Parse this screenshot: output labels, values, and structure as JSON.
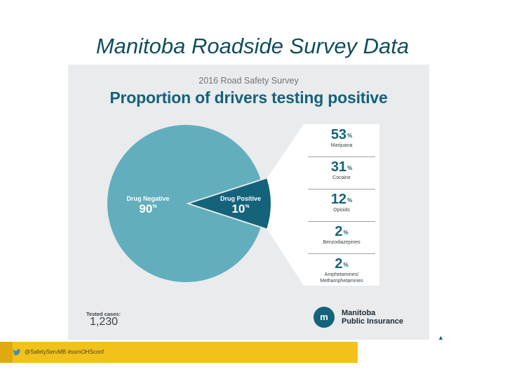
{
  "slide_title": "Manitoba Roadside Survey Data",
  "survey": {
    "subtitle": "2016 Road Safety Survey",
    "heading": "Proportion of drivers testing positive"
  },
  "chart_data": {
    "type": "pie",
    "slices": [
      {
        "label": "Drug Negative",
        "value": 90,
        "unit": "%",
        "color": "#62aebd"
      },
      {
        "label": "Drug Positive",
        "value": 10,
        "unit": "%",
        "color": "#14637a"
      }
    ],
    "breakdown": [
      {
        "label": "Marijuana",
        "value": 53
      },
      {
        "label": "Cocaine",
        "value": 31
      },
      {
        "label": "Opioids",
        "value": 12
      },
      {
        "label": "Benzodiazepines",
        "value": 2
      },
      {
        "label": "Amphetamines/ Methamphetamines",
        "value": 2
      }
    ],
    "pct_symbol": "%"
  },
  "tested": {
    "label": "Tested cases:",
    "value": "1,230"
  },
  "logo": {
    "line1": "Manitoba",
    "line2": "Public Insurance",
    "mark": "m"
  },
  "footer": {
    "text": "@SafetyServMB #ssmOHSconf",
    "icon": "twitter-icon"
  },
  "colors": {
    "primary": "#14637a",
    "light": "#62aebd",
    "footer": "#f2c21a"
  }
}
